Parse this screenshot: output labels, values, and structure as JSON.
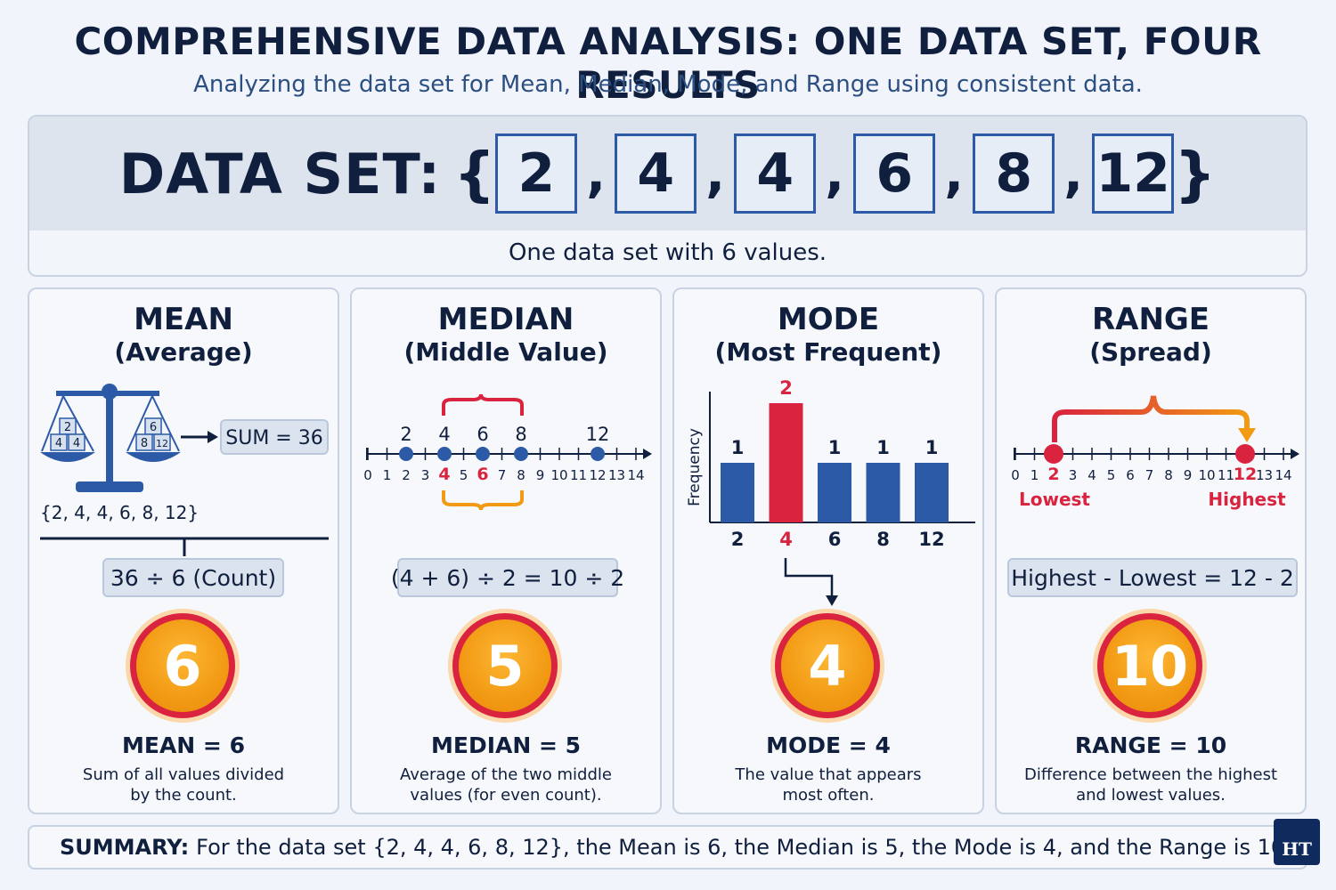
{
  "header": {
    "title": "COMPREHENSIVE DATA ANALYSIS: ONE DATA SET, FOUR RESULTS",
    "subtitle": "Analyzing the data set for Mean, Median, Mode, and Range using consistent data."
  },
  "dataset": {
    "label": "DATA SET:",
    "open_brace": "{",
    "close_brace": "}",
    "values": [
      "2",
      "4",
      "4",
      "6",
      "8",
      "12"
    ],
    "caption": "One data set with 6 values."
  },
  "mean": {
    "title": "MEAN",
    "subtitle": "(Average)",
    "weights_left": [
      "2",
      "4",
      "4"
    ],
    "weights_right": [
      "6",
      "8",
      "12"
    ],
    "sum_label": "SUM = 36",
    "set_text": "{2, 4, 4, 6, 8, 12}",
    "formula": "36 ÷ 6 (Count)",
    "result": "6",
    "result_label": "MEAN = 6",
    "desc_1": "Sum of all values divided",
    "desc_2": "by the count."
  },
  "median": {
    "title": "MEDIAN",
    "subtitle": "(Middle Value)",
    "point_labels": [
      "2",
      "4",
      "6",
      "8",
      "12"
    ],
    "formula": "(4 + 6) ÷ 2 = 10 ÷ 2",
    "result": "5",
    "result_label": "MEDIAN = 5",
    "desc_1": "Average of the two middle",
    "desc_2": "values (for even count)."
  },
  "mode": {
    "title": "MODE",
    "subtitle": "(Most Frequent)",
    "ylabel": "Frequency",
    "result": "4",
    "result_label": "MODE = 4",
    "desc_1": "The value that appears",
    "desc_2": "most often."
  },
  "range": {
    "title": "RANGE",
    "subtitle": "(Spread)",
    "low_label": "Lowest",
    "high_label": "Highest",
    "formula": "Highest - Lowest = 12 - 2",
    "result": "10",
    "result_label": "RANGE = 10",
    "desc_1": "Difference between the highest",
    "desc_2": "and lowest values."
  },
  "number_line": {
    "ticks": [
      "0",
      "1",
      "2",
      "3",
      "4",
      "5",
      "6",
      "7",
      "8",
      "9",
      "10",
      "11",
      "12",
      "13",
      "14"
    ]
  },
  "chart_data": {
    "type": "bar",
    "categories": [
      "2",
      "4",
      "6",
      "8",
      "12"
    ],
    "values": [
      1,
      2,
      1,
      1,
      1
    ],
    "ylabel": "Frequency",
    "highlight": "4"
  },
  "summary": {
    "label": "SUMMARY:",
    "text": "For the data set {2, 4, 4, 6, 8, 12}, the Mean is 6, the Median is 5, the Mode is 4, and the Range is 10."
  },
  "logo": {
    "text": "HT"
  },
  "colors": {
    "navy": "#0f1f3d",
    "blue": "#2d5aa7",
    "red": "#d9233f",
    "orange": "#f29a14"
  }
}
